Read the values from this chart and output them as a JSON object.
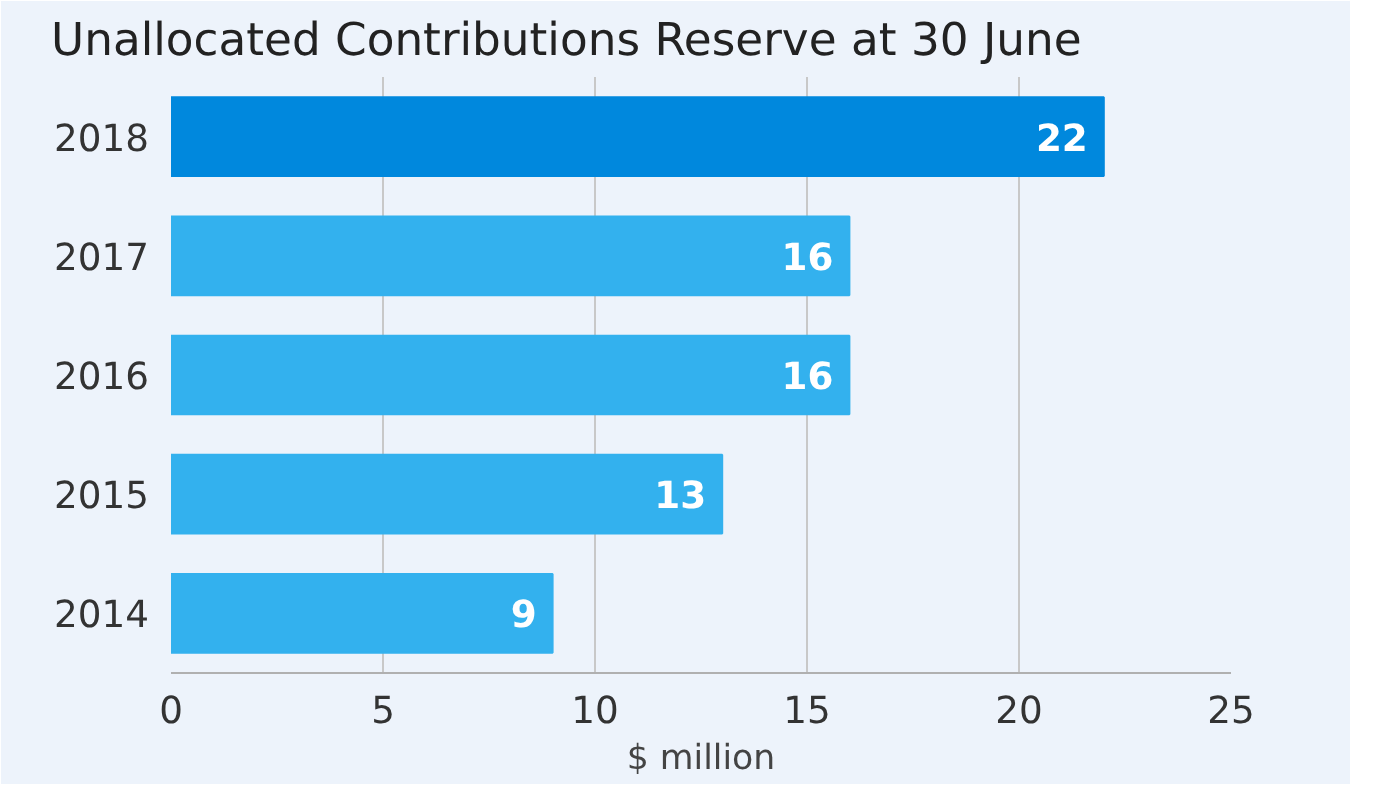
{
  "chart_data": {
    "type": "bar",
    "orientation": "horizontal",
    "title": "Unallocated Contributions Reserve at 30 June",
    "xlabel": "$ million",
    "categories": [
      "2018",
      "2017",
      "2016",
      "2015",
      "2014"
    ],
    "values": [
      22,
      16,
      16,
      13,
      9
    ],
    "colors": [
      "#0088dd",
      "#33b1ee",
      "#33b1ee",
      "#33b1ee",
      "#33b1ee"
    ],
    "xlim": [
      0,
      25
    ],
    "xticks": [
      0,
      5,
      10,
      15,
      20,
      25
    ],
    "grid": "x",
    "data_labels": true
  }
}
